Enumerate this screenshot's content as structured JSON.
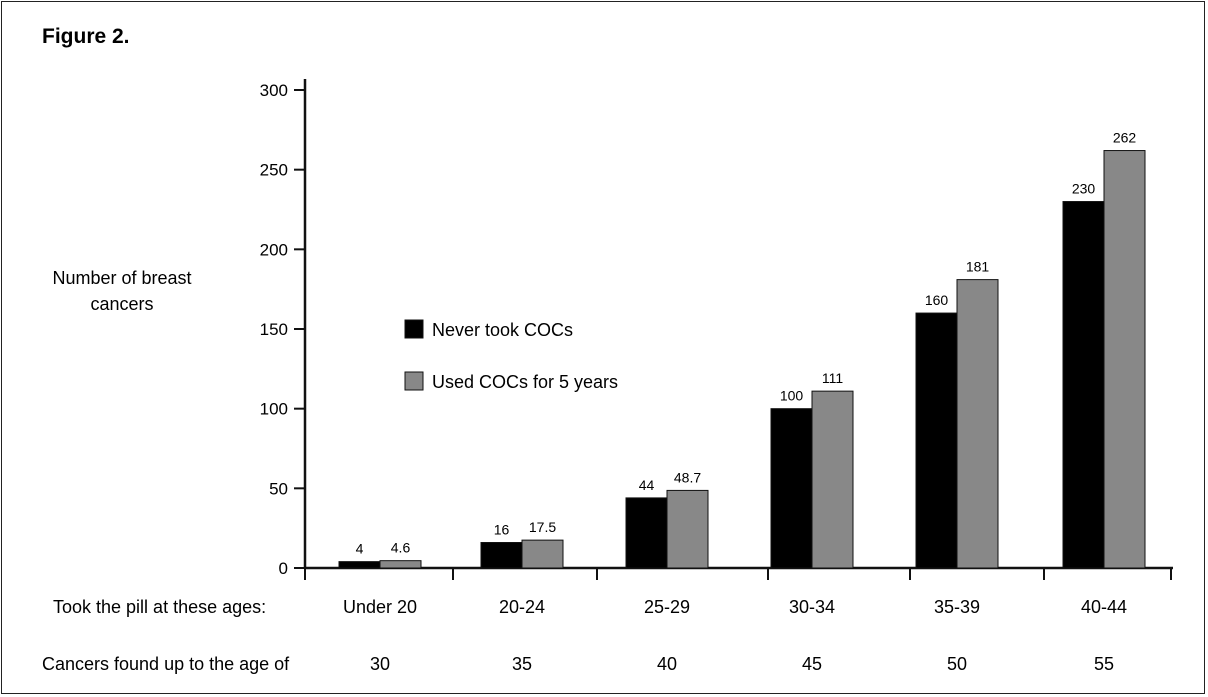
{
  "chart_data": {
    "type": "bar",
    "title": "Figure 2.",
    "ylabel_lines": [
      "Number of breast",
      "cancers"
    ],
    "ylim": [
      0,
      300
    ],
    "y_ticks": [
      0,
      50,
      100,
      150,
      200,
      250,
      300
    ],
    "categories": [
      "Under 20",
      "20-24",
      "25-29",
      "30-34",
      "35-39",
      "40-44"
    ],
    "x_row_title": "Took the pill at these ages:",
    "second_row_title": "Cancers found up to the age of",
    "second_row_values": [
      "30",
      "35",
      "40",
      "45",
      "50",
      "55"
    ],
    "series": [
      {
        "name": "Never took COCs",
        "color": "#000000",
        "values": [
          4,
          16,
          44,
          100,
          160,
          230
        ],
        "labels": [
          "4",
          "16",
          "44",
          "100",
          "160",
          "230"
        ]
      },
      {
        "name": "Used COCs for 5 years",
        "color": "#888888",
        "values": [
          4.6,
          17.5,
          48.7,
          111,
          181,
          262
        ],
        "labels": [
          "4.6",
          "17.5",
          "48.7",
          "111",
          "181",
          "262"
        ]
      }
    ],
    "legend_position": "center-left",
    "grid": false
  }
}
